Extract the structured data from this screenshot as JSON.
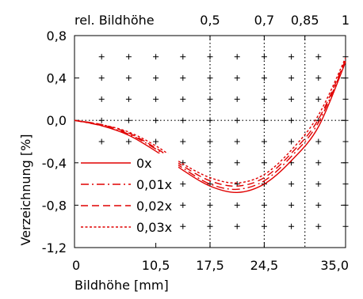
{
  "chart_data": {
    "type": "line",
    "xlabel": "Bildhöhe [mm]",
    "ylabel": "Verzeichnung [%]",
    "top_axis_label": "rel. Bildhöhe",
    "xlim": [
      0,
      35
    ],
    "ylim": [
      -1.2,
      0.8
    ],
    "x_ticks": [
      {
        "value": 0,
        "label": "0"
      },
      {
        "value": 10.5,
        "label": "10,5"
      },
      {
        "value": 17.5,
        "label": "17,5"
      },
      {
        "value": 24.5,
        "label": "24,5"
      },
      {
        "value": 35,
        "label": "35,0"
      }
    ],
    "y_ticks": [
      {
        "value": 0.8,
        "label": "0,8"
      },
      {
        "value": 0.4,
        "label": "0,4"
      },
      {
        "value": 0.0,
        "label": "0,0"
      },
      {
        "value": -0.4,
        "label": "-0,4"
      },
      {
        "value": -0.8,
        "label": "-0,8"
      },
      {
        "value": -1.2,
        "label": "-1,2"
      }
    ],
    "top_ticks": [
      {
        "value": 17.5,
        "label": "0,5"
      },
      {
        "value": 24.5,
        "label": "0,7"
      },
      {
        "value": 29.75,
        "label": "0,85"
      },
      {
        "value": 35,
        "label": "1"
      }
    ],
    "vertical_reference_lines": [
      17.5,
      24.5,
      29.75
    ],
    "horizontal_reference_lines": [
      0.0
    ],
    "grid": "plus-markers",
    "grid_x": [
      3.5,
      7,
      10.5,
      14,
      17.5,
      21,
      24.5,
      28,
      31.5,
      35
    ],
    "grid_y": [
      0.6,
      0.4,
      0.2,
      0.0,
      -0.2,
      -0.4,
      -0.6,
      -0.8,
      -1.0
    ],
    "legend_position": "lower-left",
    "color": "#e00000",
    "series": [
      {
        "name": "0x",
        "dash": "solid",
        "x": [
          0,
          3.5,
          7,
          10.5,
          14,
          17.5,
          21,
          24.5,
          28,
          31.5,
          35
        ],
        "y": [
          0.0,
          -0.05,
          -0.14,
          -0.29,
          -0.47,
          -0.62,
          -0.68,
          -0.6,
          -0.38,
          -0.06,
          0.55
        ]
      },
      {
        "name": "0,01x",
        "dash": "dashdot",
        "x": [
          0,
          3.5,
          7,
          10.5,
          14,
          17.5,
          21,
          24.5,
          28,
          31.5,
          35
        ],
        "y": [
          0.0,
          -0.05,
          -0.13,
          -0.27,
          -0.45,
          -0.6,
          -0.65,
          -0.57,
          -0.34,
          -0.02,
          0.56
        ]
      },
      {
        "name": "0,02x",
        "dash": "dashed",
        "x": [
          0,
          3.5,
          7,
          10.5,
          14,
          17.5,
          21,
          24.5,
          28,
          31.5,
          35
        ],
        "y": [
          0.0,
          -0.04,
          -0.12,
          -0.26,
          -0.43,
          -0.57,
          -0.62,
          -0.54,
          -0.31,
          0.01,
          0.57
        ]
      },
      {
        "name": "0,03x",
        "dash": "dotted",
        "x": [
          0,
          3.5,
          7,
          10.5,
          14,
          17.5,
          21,
          24.5,
          28,
          31.5,
          35
        ],
        "y": [
          0.0,
          -0.04,
          -0.11,
          -0.24,
          -0.41,
          -0.54,
          -0.59,
          -0.51,
          -0.28,
          0.05,
          0.59
        ]
      }
    ]
  }
}
